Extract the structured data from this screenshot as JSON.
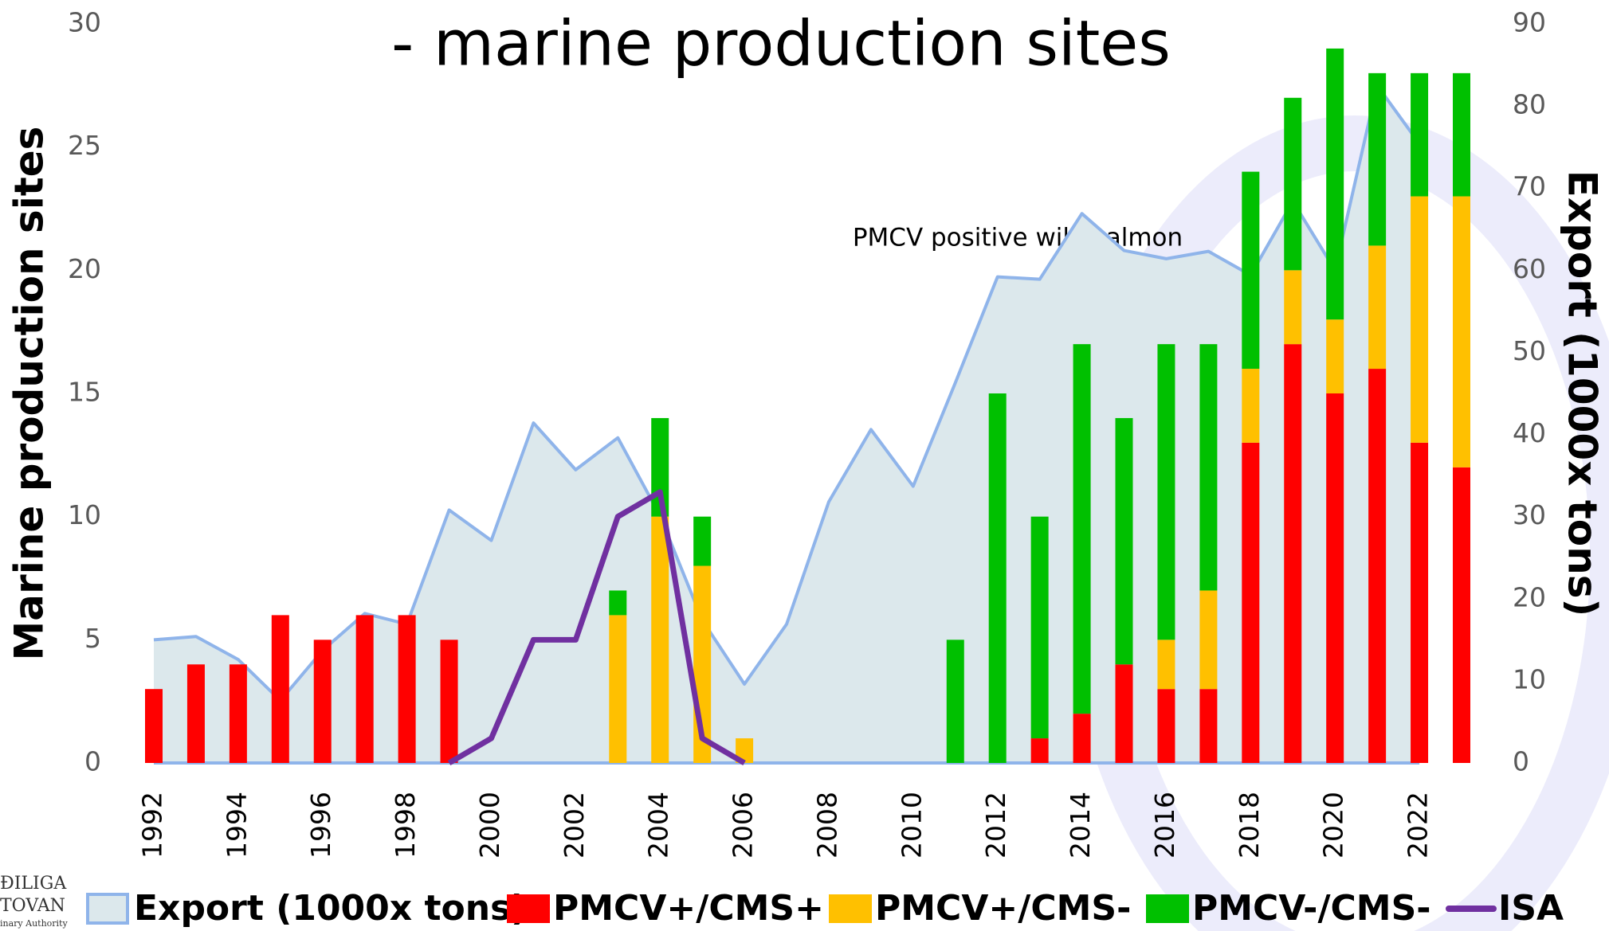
{
  "chart_data": {
    "type": "bar",
    "title": "- marine production sites",
    "y_label": "Marine production sites",
    "y2_label": "Export (1000x tons)",
    "annotation": "PMCV positive wild salmon",
    "logo": [
      "ĐILIGA",
      "TOVAN",
      "inary Authority"
    ],
    "categories": [
      "1992",
      null,
      "1994",
      null,
      "1996",
      null,
      "1998",
      null,
      "2000",
      null,
      "2002",
      null,
      "2004",
      null,
      "2006",
      null,
      "2008",
      null,
      "2010",
      null,
      "2012",
      null,
      "2014",
      null,
      "2016",
      null,
      "2018",
      null,
      "2020",
      null,
      "2022",
      null
    ],
    "ylim": [
      0,
      30
    ],
    "yticks": [
      0,
      5,
      10,
      15,
      20,
      25,
      30
    ],
    "y2lim": [
      0,
      90
    ],
    "y2ticks": [
      0,
      10,
      20,
      30,
      40,
      50,
      60,
      70,
      80,
      90
    ],
    "grid": false,
    "legend": "bottom",
    "series": [
      {
        "name": "Export (1000x tons)",
        "type": "area",
        "axis": "y2",
        "color": "#8fb4ea",
        "fill": "#dce8ec",
        "values": [
          15,
          15.4,
          12.6,
          7.6,
          13.7,
          18.2,
          16.9,
          30.8,
          27.1,
          41.4,
          35.7,
          39.6,
          30.1,
          17.4,
          9.6,
          16.9,
          31.8,
          40.6,
          33.7,
          46.3,
          59.2,
          58.9,
          66.9,
          62.4,
          61.4,
          62.3,
          59.4,
          68.4,
          60,
          82.5,
          75.4,
          null
        ]
      },
      {
        "name": "PMCV+/CMS+",
        "type": "bar",
        "color": "#ff0000",
        "values": [
          3,
          4,
          4,
          6,
          5,
          6,
          6,
          5,
          0,
          0,
          0,
          0,
          0,
          0,
          0,
          0,
          0,
          0,
          0,
          0,
          0,
          1,
          2,
          4,
          3,
          3,
          13,
          17,
          15,
          16,
          13,
          12
        ]
      },
      {
        "name": "PMCV+/CMS-",
        "type": "bar",
        "color": "#ffc000",
        "values": [
          0,
          0,
          0,
          0,
          0,
          0,
          0,
          0,
          0,
          0,
          0,
          6,
          10,
          8,
          1,
          0,
          0,
          0,
          0,
          0,
          0,
          0,
          0,
          0,
          2,
          4,
          3,
          3,
          3,
          5,
          10,
          11
        ]
      },
      {
        "name": "PMCV-/CMS-",
        "type": "bar",
        "color": "#00c000",
        "values": [
          0,
          0,
          0,
          0,
          0,
          0,
          0,
          0,
          0,
          0,
          0,
          1,
          4,
          2,
          0,
          0,
          0,
          0,
          0,
          5,
          15,
          9,
          15,
          10,
          12,
          10,
          8,
          7,
          11,
          7,
          5,
          5
        ]
      },
      {
        "name": "ISA",
        "type": "line",
        "color": "#7030a0",
        "values": [
          null,
          null,
          null,
          null,
          null,
          null,
          null,
          0,
          1,
          5,
          5,
          10,
          11,
          1,
          0,
          null,
          null,
          null,
          null,
          null,
          null,
          null,
          null,
          null,
          null,
          null,
          null,
          null,
          null,
          null,
          null,
          null
        ]
      }
    ]
  }
}
